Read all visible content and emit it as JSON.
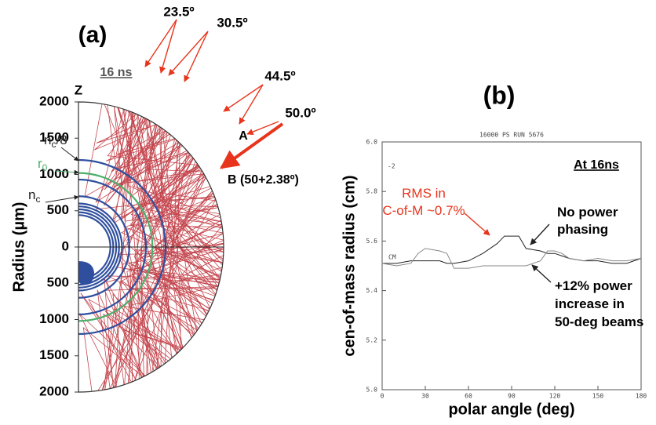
{
  "chart_data": [
    {
      "type": "raytrace",
      "label": "(a)",
      "time_label": "16 ns",
      "axis_label": "Z",
      "ylabel": "Radius (µm)",
      "ylim": [
        -2000,
        2000
      ],
      "yticks": [
        {
          "value": -2000,
          "label": "2000"
        },
        {
          "value": -1500,
          "label": "1500"
        },
        {
          "value": -1000,
          "label": "1000"
        },
        {
          "value": -500,
          "label": "500"
        },
        0,
        500,
        1000,
        1500,
        2000
      ],
      "contours": [
        {
          "r": 1200,
          "color": "#2f4f9e"
        },
        {
          "r": 1020,
          "color": "#4caf6a"
        },
        {
          "r": 930,
          "color": "#2f4f9e"
        },
        {
          "r": 700,
          "color": "#2f4f9e"
        },
        {
          "r": 600,
          "color": "#2f4f9e"
        },
        {
          "r": 560,
          "color": "#2f4f9e"
        },
        {
          "r": 520,
          "color": "#2f4f9e"
        },
        {
          "r": 480,
          "color": "#2f4f9e"
        },
        {
          "r": 440,
          "color": "#2f4f9e"
        }
      ],
      "beams": [
        "23.5º",
        "30.5º",
        "44.5º",
        "50.0º"
      ],
      "beam_points": [
        "A",
        "B (50+2.38º)"
      ],
      "density_labels": [
        {
          "text": "n",
          "sub": "c",
          "suffix": "/8"
        },
        {
          "text": "r",
          "sub": "0"
        },
        {
          "text": "n",
          "sub": "c"
        }
      ]
    },
    {
      "type": "line",
      "label": "(b)",
      "title": "16000 PS RUN 5676",
      "xlabel": "polar angle (deg)",
      "ylabel": "cen-of-mass radius (cm)",
      "note": "At 16ns",
      "rms_note": "RMS in\nC-of-M ~0.7%",
      "stray_labels": [
        "-2",
        "CM"
      ],
      "xlim": [
        0,
        180
      ],
      "xticks": [
        0,
        30,
        60,
        90,
        120,
        150,
        180
      ],
      "ylim": [
        5,
        6
      ],
      "yticks": [
        {
          "value": 5,
          "label": "5.0"
        },
        {
          "value": 5.2,
          "label": "5.2"
        },
        {
          "value": 5.4,
          "label": "5.4"
        },
        {
          "value": 5.6,
          "label": "5.6"
        },
        {
          "value": 5.8,
          "label": "5.8"
        },
        {
          "value": 6,
          "label": "6.0"
        }
      ],
      "x": [
        0,
        10,
        20,
        25,
        30,
        40,
        45,
        50,
        60,
        70,
        80,
        85,
        90,
        95,
        100,
        110,
        115,
        120,
        125,
        130,
        140,
        150,
        160,
        170,
        180
      ],
      "series": [
        {
          "name": "No power\nphasing",
          "color": "#222222",
          "values": [
            5.51,
            5.51,
            5.52,
            5.52,
            5.52,
            5.52,
            5.51,
            5.51,
            5.52,
            5.55,
            5.59,
            5.62,
            5.62,
            5.62,
            5.57,
            5.56,
            5.55,
            5.55,
            5.54,
            5.53,
            5.52,
            5.52,
            5.51,
            5.51,
            5.53
          ]
        },
        {
          "name": "+12% power\nincrease in\n50-deg beams",
          "color": "#888888",
          "values": [
            5.51,
            5.5,
            5.51,
            5.55,
            5.57,
            5.56,
            5.55,
            5.49,
            5.49,
            5.5,
            5.5,
            5.5,
            5.5,
            5.5,
            5.5,
            5.52,
            5.56,
            5.56,
            5.55,
            5.53,
            5.52,
            5.53,
            5.52,
            5.52,
            5.53
          ]
        }
      ]
    }
  ]
}
